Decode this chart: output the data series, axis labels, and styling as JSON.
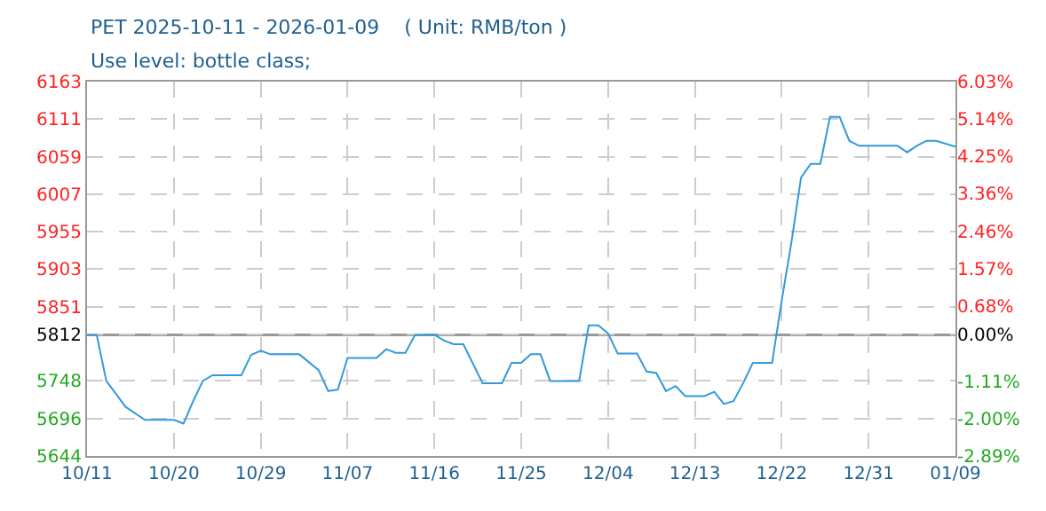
{
  "chart_data": {
    "type": "line",
    "title": "PET 2025-10-11 - 2026-01-09    ( Unit: RMB/ton )",
    "subtitle": "Use level: bottle class;",
    "x": [
      "2025-10-11",
      "2025-10-12",
      "2025-10-13",
      "2025-10-15",
      "2025-10-17",
      "2025-10-20",
      "2025-10-21",
      "2025-10-22",
      "2025-10-23",
      "2025-10-24",
      "2025-10-27",
      "2025-10-28",
      "2025-10-29",
      "2025-10-30",
      "2025-11-02",
      "2025-11-04",
      "2025-11-05",
      "2025-11-06",
      "2025-11-07",
      "2025-11-10",
      "2025-11-11",
      "2025-11-12",
      "2025-11-13",
      "2025-11-14",
      "2025-11-16",
      "2025-11-17",
      "2025-11-18",
      "2025-11-19",
      "2025-11-21",
      "2025-11-23",
      "2025-11-24",
      "2025-11-25",
      "2025-11-26",
      "2025-11-27",
      "2025-11-28",
      "2025-12-01",
      "2025-12-02",
      "2025-12-03",
      "2025-12-04",
      "2025-12-05",
      "2025-12-07",
      "2025-12-08",
      "2025-12-09",
      "2025-12-10",
      "2025-12-11",
      "2025-12-12",
      "2025-12-14",
      "2025-12-15",
      "2025-12-16",
      "2025-12-17",
      "2025-12-18",
      "2025-12-19",
      "2025-12-21",
      "2025-12-22",
      "2025-12-23",
      "2025-12-24",
      "2025-12-25",
      "2025-12-26",
      "2025-12-27",
      "2025-12-28",
      "2025-12-29",
      "2025-12-30",
      "2026-01-03",
      "2026-01-04",
      "2026-01-05",
      "2026-01-06",
      "2026-01-07",
      "2026-01-09"
    ],
    "series": [
      {
        "color": "#3399dd",
        "values": [
          5812,
          5812,
          5748,
          5712,
          5694,
          5694,
          5689,
          5720,
          5748,
          5756,
          5756,
          5784,
          5790,
          5785,
          5785,
          5763,
          5734,
          5736,
          5780,
          5780,
          5792,
          5787,
          5787,
          5812,
          5812,
          5804,
          5799,
          5799,
          5745,
          5745,
          5773,
          5773,
          5785,
          5785,
          5748,
          5748,
          5825,
          5825,
          5814,
          5786,
          5786,
          5761,
          5759,
          5734,
          5741,
          5727,
          5727,
          5733,
          5716,
          5720,
          5745,
          5773,
          5773,
          5860,
          5940,
          6030,
          6049,
          6049,
          6114,
          6114,
          6081,
          6074,
          6074,
          6065,
          6074,
          6081,
          6081,
          6073
        ]
      }
    ],
    "xlim": [
      "2025-10-11",
      "2026-01-09"
    ],
    "xticks": [
      {
        "value": "2025-10-11",
        "label": "10/11"
      },
      {
        "value": "2025-10-20",
        "label": "10/20"
      },
      {
        "value": "2025-10-29",
        "label": "10/29"
      },
      {
        "value": "2025-11-07",
        "label": "11/07"
      },
      {
        "value": "2025-11-16",
        "label": "11/16"
      },
      {
        "value": "2025-11-25",
        "label": "11/25"
      },
      {
        "value": "2025-12-04",
        "label": "12/04"
      },
      {
        "value": "2025-12-13",
        "label": "12/13"
      },
      {
        "value": "2025-12-22",
        "label": "12/22"
      },
      {
        "value": "2025-12-31",
        "label": "12/31"
      },
      {
        "value": "2026-01-09",
        "label": "01/09"
      }
    ],
    "ylim": [
      5644,
      6163
    ],
    "yticks": [
      5644,
      5696,
      5748,
      5812,
      5851,
      5903,
      5955,
      6007,
      6059,
      6111,
      6163
    ],
    "y2lim": [
      -2.89,
      6.03
    ],
    "y2ticks": [
      {
        "value": -2.89,
        "label": "-2.89%"
      },
      {
        "value": -2.0,
        "label": "-2.00%"
      },
      {
        "value": -1.11,
        "label": "-1.11%"
      },
      {
        "value": 0,
        "label": "0.00%"
      },
      {
        "value": 0.68,
        "label": "0.68%"
      },
      {
        "value": 1.57,
        "label": "1.57%"
      },
      {
        "value": 2.46,
        "label": "2.46%"
      },
      {
        "value": 3.36,
        "label": "3.36%"
      },
      {
        "value": 4.25,
        "label": "4.25%"
      },
      {
        "value": 5.14,
        "label": "5.14%"
      },
      {
        "value": 6.03,
        "label": "6.03%"
      }
    ],
    "ref_lines": [
      {
        "axis": "y",
        "value": 5812,
        "color": "#999999"
      }
    ],
    "grid": true,
    "marker": "none",
    "line_style": "solid"
  }
}
